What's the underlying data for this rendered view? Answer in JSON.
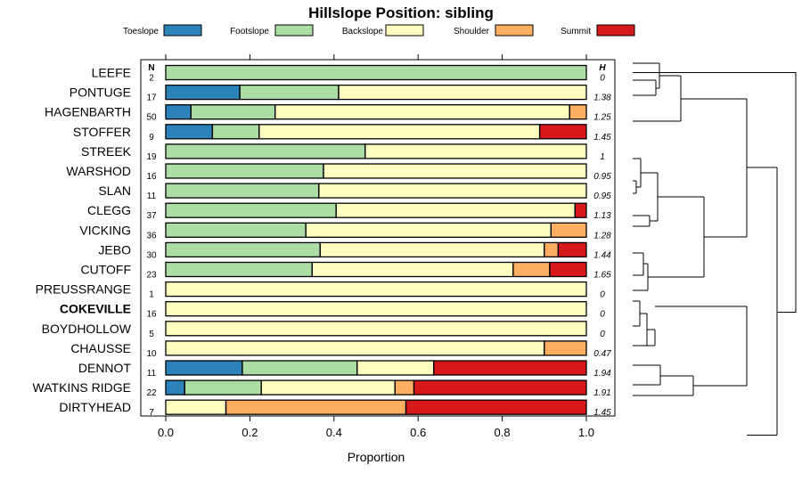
{
  "chart_data": {
    "type": "bar",
    "stacked": true,
    "orientation": "horizontal",
    "title": "Hillslope Position: sibling",
    "xlabel": "Proportion",
    "xlim": [
      0,
      1
    ],
    "xticks": [
      "0.0",
      "0.2",
      "0.4",
      "0.6",
      "0.8",
      "1.0"
    ],
    "n_header": "N",
    "h_header": "H",
    "legend_position": "top",
    "highlight": "COKEVILLE",
    "series": [
      {
        "name": "Toeslope",
        "color": "#2b83ba"
      },
      {
        "name": "Footslope",
        "color": "#abdda4"
      },
      {
        "name": "Backslope",
        "color": "#ffffbf"
      },
      {
        "name": "Shoulder",
        "color": "#fdae61"
      },
      {
        "name": "Summit",
        "color": "#d7191c"
      }
    ],
    "categories": [
      {
        "label": "LEEFE",
        "n": "2",
        "h": "0",
        "values": [
          0,
          1.0,
          0,
          0,
          0
        ]
      },
      {
        "label": "PONTUGE",
        "n": "17",
        "h": "1.38",
        "values": [
          0.176,
          0.235,
          0.589,
          0,
          0
        ]
      },
      {
        "label": "HAGENBARTH",
        "n": "50",
        "h": "1.25",
        "values": [
          0.06,
          0.2,
          0.7,
          0.04,
          0
        ]
      },
      {
        "label": "STOFFER",
        "n": "9",
        "h": "1.45",
        "values": [
          0.111,
          0.111,
          0.667,
          0,
          0.111
        ]
      },
      {
        "label": "STREEK",
        "n": "19",
        "h": "1",
        "values": [
          0,
          0.474,
          0.526,
          0,
          0
        ]
      },
      {
        "label": "WARSHOD",
        "n": "16",
        "h": "0.95",
        "values": [
          0,
          0.375,
          0.625,
          0,
          0
        ]
      },
      {
        "label": "SLAN",
        "n": "11",
        "h": "0.95",
        "values": [
          0,
          0.364,
          0.636,
          0,
          0
        ]
      },
      {
        "label": "CLEGG",
        "n": "37",
        "h": "1.13",
        "values": [
          0,
          0.405,
          0.568,
          0,
          0.027
        ]
      },
      {
        "label": "VICKING",
        "n": "36",
        "h": "1.28",
        "values": [
          0,
          0.333,
          0.583,
          0.084,
          0
        ]
      },
      {
        "label": "JEBO",
        "n": "30",
        "h": "1.44",
        "values": [
          0,
          0.367,
          0.533,
          0.033,
          0.067
        ]
      },
      {
        "label": "CUTOFF",
        "n": "23",
        "h": "1.65",
        "values": [
          0,
          0.348,
          0.478,
          0.087,
          0.087
        ]
      },
      {
        "label": "PREUSSRANGE",
        "n": "1",
        "h": "0",
        "values": [
          0,
          0,
          1.0,
          0,
          0
        ]
      },
      {
        "label": "COKEVILLE",
        "n": "16",
        "h": "0",
        "values": [
          0,
          0,
          1.0,
          0,
          0
        ]
      },
      {
        "label": "BOYDHOLLOW",
        "n": "5",
        "h": "0",
        "values": [
          0,
          0,
          1.0,
          0,
          0
        ]
      },
      {
        "label": "CHAUSSE",
        "n": "10",
        "h": "0.47",
        "values": [
          0,
          0,
          0.9,
          0.1,
          0
        ]
      },
      {
        "label": "DENNOT",
        "n": "11",
        "h": "1.94",
        "values": [
          0.182,
          0.273,
          0.182,
          0,
          0.363
        ]
      },
      {
        "label": "WATKINS RIDGE",
        "n": "22",
        "h": "1.91",
        "values": [
          0.045,
          0.182,
          0.318,
          0.045,
          0.41
        ]
      },
      {
        "label": "DIRTYHEAD",
        "n": "7",
        "h": "1.45",
        "values": [
          0,
          0,
          0.143,
          0.428,
          0.429
        ]
      }
    ]
  }
}
